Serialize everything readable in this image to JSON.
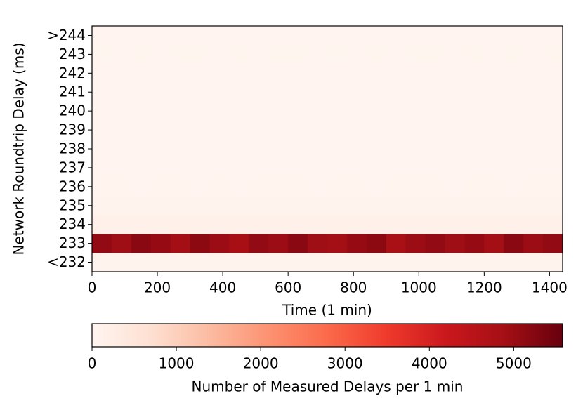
{
  "chart_data": {
    "type": "heatmap",
    "xlabel": "Time (1 min)",
    "ylabel": "Network Roundtrip Delay (ms)",
    "bins": [
      0,
      60,
      120,
      180,
      240,
      300,
      360,
      420,
      480,
      540,
      600,
      660,
      720,
      780,
      840,
      900,
      960,
      1020,
      1080,
      1140,
      1200,
      1260,
      1320,
      1380,
      1440
    ],
    "xlim": [
      0,
      1440
    ],
    "xticks": [
      0,
      200,
      400,
      600,
      800,
      1000,
      1200,
      1400
    ],
    "categories": [
      "<232",
      "233",
      "234",
      "235",
      "236",
      "237",
      "238",
      "239",
      "240",
      "241",
      "242",
      "243",
      ">244"
    ],
    "values": [
      [
        60,
        55,
        65,
        58,
        62,
        60,
        57,
        63,
        59,
        61,
        60,
        56,
        64,
        58,
        60,
        62,
        59,
        61,
        57,
        63,
        60,
        58,
        62,
        60
      ],
      [
        5100,
        4950,
        5200,
        5050,
        4900,
        5150,
        5000,
        4850,
        5100,
        5000,
        5200,
        4950,
        4900,
        5050,
        5150,
        4800,
        5000,
        5100,
        4950,
        5050,
        4900,
        5200,
        5000,
        5100
      ],
      [
        150,
        140,
        160,
        150,
        145,
        155,
        150,
        140,
        160,
        150,
        145,
        155,
        150,
        140,
        160,
        150,
        145,
        155,
        150,
        140,
        160,
        150,
        145,
        155
      ],
      [
        60,
        58,
        62,
        60,
        57,
        63,
        59,
        61,
        60,
        56,
        64,
        58,
        60,
        62,
        59,
        61,
        57,
        63,
        60,
        58,
        62,
        60,
        59,
        61
      ],
      [
        35,
        40,
        32,
        38,
        36,
        34,
        39,
        33,
        37,
        35,
        40,
        34,
        36,
        38,
        33,
        37,
        35,
        39,
        34,
        36,
        38,
        33,
        37,
        35
      ],
      [
        30,
        34,
        28,
        32,
        30,
        29,
        33,
        31,
        30,
        28,
        34,
        30,
        31,
        32,
        29,
        30,
        33,
        28,
        31,
        30,
        32,
        29,
        30,
        31
      ],
      [
        28,
        30,
        26,
        29,
        27,
        28,
        30,
        26,
        29,
        28,
        27,
        30,
        28,
        26,
        29,
        28,
        30,
        27,
        28,
        29,
        26,
        28,
        30,
        27
      ],
      [
        25,
        27,
        24,
        26,
        25,
        24,
        27,
        25,
        26,
        24,
        25,
        27,
        24,
        26,
        25,
        27,
        24,
        25,
        26,
        24,
        27,
        25,
        26,
        24
      ],
      [
        22,
        24,
        21,
        23,
        22,
        21,
        24,
        22,
        23,
        21,
        22,
        24,
        21,
        23,
        22,
        24,
        21,
        22,
        23,
        21,
        24,
        22,
        23,
        21
      ],
      [
        20,
        22,
        19,
        21,
        20,
        19,
        22,
        20,
        21,
        19,
        20,
        22,
        19,
        21,
        20,
        22,
        19,
        20,
        21,
        19,
        22,
        20,
        21,
        19
      ],
      [
        18,
        20,
        17,
        19,
        18,
        17,
        20,
        18,
        19,
        17,
        18,
        20,
        17,
        19,
        18,
        20,
        17,
        18,
        19,
        17,
        20,
        18,
        19,
        17
      ],
      [
        16,
        18,
        15,
        17,
        16,
        15,
        18,
        16,
        17,
        15,
        16,
        18,
        15,
        17,
        16,
        18,
        15,
        16,
        17,
        15,
        18,
        16,
        17,
        15
      ],
      [
        30,
        32,
        28,
        31,
        29,
        30,
        33,
        28,
        31,
        30,
        29,
        32,
        30,
        28,
        31,
        30,
        33,
        29,
        30,
        31,
        28,
        30,
        32,
        29
      ]
    ],
    "colormap": "Reds",
    "colorbar": {
      "label": "Number of Measured Delays per 1 min",
      "clim": [
        0,
        5580
      ],
      "ticks": [
        0,
        1000,
        2000,
        3000,
        4000,
        5000
      ]
    }
  }
}
